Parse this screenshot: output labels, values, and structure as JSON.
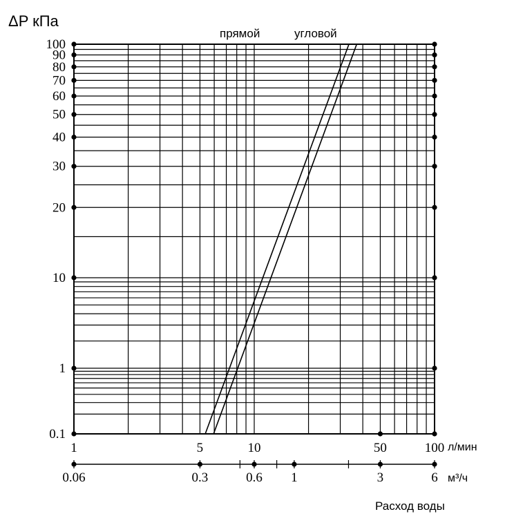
{
  "chart_data": {
    "type": "line",
    "title": "",
    "ylabel": "ΔP кПа",
    "xlabel": "Расход воды",
    "x_scale": "log",
    "y_scale": "log",
    "xlim": [
      1,
      100
    ],
    "ylim": [
      0.1,
      100
    ],
    "grid": true,
    "y_ticks": [
      {
        "label": "0.1",
        "value": 0.1
      },
      {
        "label": "1",
        "value": 1
      },
      {
        "label": "10",
        "value": 10
      },
      {
        "label": "20",
        "value": 20
      },
      {
        "label": "30",
        "value": 30
      },
      {
        "label": "40",
        "value": 40
      },
      {
        "label": "50",
        "value": 50
      },
      {
        "label": "60",
        "value": 60
      },
      {
        "label": "70",
        "value": 70
      },
      {
        "label": "80",
        "value": 80
      },
      {
        "label": "90",
        "value": 90
      },
      {
        "label": "100",
        "value": 100
      }
    ],
    "x_axis_primary": {
      "unit": "л/мин",
      "ticks": [
        {
          "label": "1",
          "value": 1
        },
        {
          "label": "5",
          "value": 5
        },
        {
          "label": "10",
          "value": 10
        },
        {
          "label": "50",
          "value": 50
        },
        {
          "label": "100",
          "value": 100
        }
      ]
    },
    "x_axis_secondary": {
      "unit": "м³/ч",
      "ticks": [
        {
          "label": "0.06",
          "value": 0.06
        },
        {
          "label": "0.3",
          "value": 0.3
        },
        {
          "label": "0.6",
          "value": 0.6
        },
        {
          "label": "1",
          "value": 1
        },
        {
          "label": "3",
          "value": 3
        },
        {
          "label": "6",
          "value": 6
        }
      ],
      "minor_ticks": [
        0.5,
        0.8,
        2
      ]
    },
    "series": [
      {
        "name": "прямой",
        "color": "#000000",
        "points": [
          {
            "x": 5.35,
            "y": 0.1
          },
          {
            "x": 33.5,
            "y": 100
          }
        ]
      },
      {
        "name": "угловой",
        "color": "#000000",
        "points": [
          {
            "x": 5.95,
            "y": 0.1
          },
          {
            "x": 37.0,
            "y": 100
          }
        ]
      }
    ]
  }
}
